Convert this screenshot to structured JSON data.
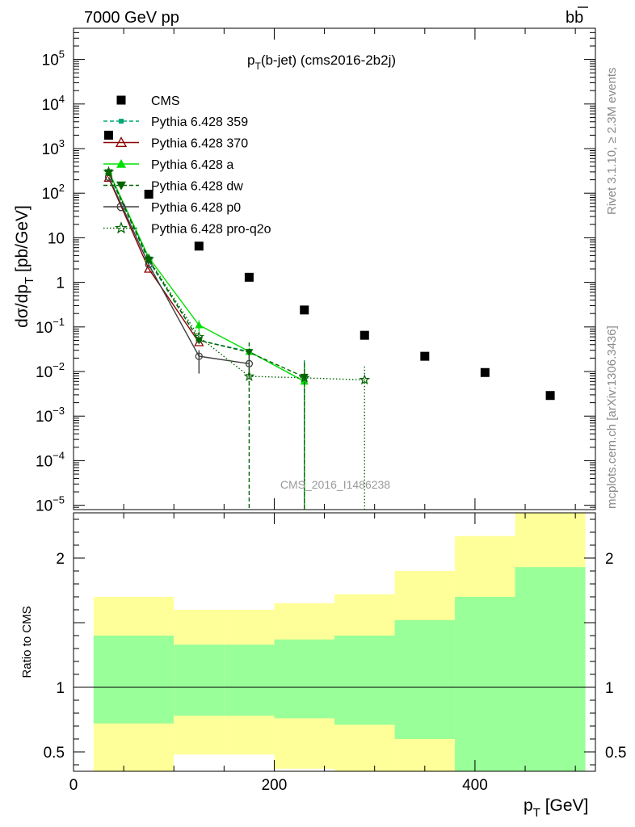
{
  "header": {
    "left": "7000 GeV pp",
    "right": "b",
    "right_bar": "b"
  },
  "side_text": {
    "rivet": "Rivet 3.1.10, ≥ 2.3M events",
    "mcplots": "mcplots.cern.ch [arXiv:1306.3436]"
  },
  "watermark": "CMS_2016_I1486238",
  "chart_data": {
    "type": "scatter",
    "title": {
      "main": "p",
      "sub": "T",
      "rest": "(b-jet) (cms2016-2b2j)"
    },
    "ylabel": {
      "a": "dσ/dp",
      "sub": "T",
      "b": " [pb/GeV]"
    },
    "xlabel": {
      "a": "p",
      "sub": "T",
      "b": " [GeV]"
    },
    "ratio_ylabel": "Ratio to CMS",
    "xlim": [
      0,
      520
    ],
    "ylim": [
      8e-06,
      500000.0
    ],
    "yscale": "log",
    "ratio_ylim": [
      0.35,
      2.35
    ],
    "x_ticks": [
      "0",
      "200",
      "400"
    ],
    "y_ticks": [
      {
        "v": 100000.0,
        "b": "10",
        "e": "5"
      },
      {
        "v": 10000.0,
        "b": "10",
        "e": "4"
      },
      {
        "v": 1000.0,
        "b": "10",
        "e": "3"
      },
      {
        "v": 100,
        "b": "10",
        "e": "2"
      },
      {
        "v": 10,
        "b": "10",
        "e": ""
      },
      {
        "v": 1,
        "b": "1",
        "e": ""
      },
      {
        "v": 0.1,
        "b": "10",
        "e": "−1"
      },
      {
        "v": 0.01,
        "b": "10",
        "e": "−2"
      },
      {
        "v": 0.001,
        "b": "10",
        "e": "−3"
      },
      {
        "v": 0.0001,
        "b": "10",
        "e": "−4"
      },
      {
        "v": 1e-05,
        "b": "10",
        "e": "−5"
      }
    ],
    "ratio_ticks": [
      {
        "v": 2,
        "l": "2"
      },
      {
        "v": 1,
        "l": "1"
      },
      {
        "v": 0.5,
        "l": "0.5"
      }
    ],
    "cms": {
      "name": "CMS",
      "x": [
        35,
        75,
        125,
        175,
        230,
        290,
        350,
        410,
        475
      ],
      "y": [
        2000,
        95,
        6.5,
        1.3,
        0.24,
        0.065,
        0.022,
        0.0095,
        0.0029
      ]
    },
    "bins": [
      {
        "x0": 20,
        "x1": 100,
        "g0": 0.72,
        "g1": 1.4,
        "y0": 0.35,
        "y1": 1.7
      },
      {
        "x0": 100,
        "x1": 150,
        "g0": 0.78,
        "g1": 1.33,
        "y0": 0.48,
        "y1": 1.6
      },
      {
        "x0": 150,
        "x1": 200,
        "g0": 0.78,
        "g1": 1.33,
        "y0": 0.48,
        "y1": 1.6
      },
      {
        "x0": 200,
        "x1": 260,
        "g0": 0.76,
        "g1": 1.37,
        "y0": 0.37,
        "y1": 1.65
      },
      {
        "x0": 260,
        "x1": 320,
        "g0": 0.71,
        "g1": 1.4,
        "y0": 0.35,
        "y1": 1.72
      },
      {
        "x0": 320,
        "x1": 380,
        "g0": 0.6,
        "g1": 1.52,
        "y0": 0.35,
        "y1": 1.9
      },
      {
        "x0": 380,
        "x1": 440,
        "g0": 0.35,
        "g1": 1.7,
        "y0": 0.35,
        "y1": 2.17
      },
      {
        "x0": 440,
        "x1": 510,
        "g0": 0.35,
        "g1": 1.93,
        "y0": 0.35,
        "y1": 2.35
      }
    ],
    "series": [
      {
        "name": "Pythia 6.428 359",
        "color": "#00a878",
        "dash": "5,3",
        "marker": "square-small",
        "x": [
          35,
          75,
          125,
          175,
          230
        ],
        "y": [
          280,
          3.0,
          0.05,
          0.028,
          0.006
        ],
        "err": [
          null,
          null,
          null,
          null,
          [
            8e-06,
            0.018
          ]
        ]
      },
      {
        "name": "Pythia 6.428 370",
        "color": "#8b0000",
        "dash": "",
        "marker": "triangle-open",
        "x": [
          35,
          75,
          125
        ],
        "y": [
          220,
          2.0,
          0.045
        ],
        "err": [
          null,
          null,
          null
        ]
      },
      {
        "name": "Pythia 6.428 a",
        "color": "#00e000",
        "dash": "",
        "marker": "triangle",
        "x": [
          35,
          75,
          125,
          175,
          230
        ],
        "y": [
          310,
          3.6,
          0.11,
          0.028,
          0.006
        ],
        "err": [
          null,
          null,
          [
            0.08,
            0.14
          ],
          null,
          [
            8e-06,
            0.016
          ]
        ]
      },
      {
        "name": "Pythia 6.428 dw",
        "color": "#006400",
        "dash": "5,3",
        "marker": "triangle-down",
        "x": [
          35,
          75,
          125,
          175,
          230
        ],
        "y": [
          290,
          3.2,
          0.05,
          0.027,
          0.0075
        ],
        "err": [
          null,
          null,
          null,
          [
            8e-06,
            0.045
          ],
          [
            8e-06,
            0.016
          ]
        ]
      },
      {
        "name": "Pythia 6.428 p0",
        "color": "#404040",
        "dash": "",
        "marker": "circle-open",
        "x": [
          35,
          75,
          125,
          175
        ],
        "y": [
          230,
          2.5,
          0.022,
          0.015
        ],
        "err": [
          null,
          null,
          [
            0.009,
            0.03
          ],
          [
            0.007,
            0.025
          ]
        ]
      },
      {
        "name": "Pythia 6.428 pro-q2o",
        "color": "#006400",
        "dash": "1.5,2.5",
        "marker": "star",
        "x": [
          35,
          75,
          125,
          175,
          230,
          290
        ],
        "y": [
          300,
          3.3,
          0.06,
          0.0078,
          0.0072,
          0.0065
        ],
        "err": [
          null,
          null,
          null,
          [
            0.004,
            0.014
          ],
          [
            8e-06,
            0.013
          ],
          [
            8e-06,
            0.013
          ]
        ]
      }
    ]
  }
}
